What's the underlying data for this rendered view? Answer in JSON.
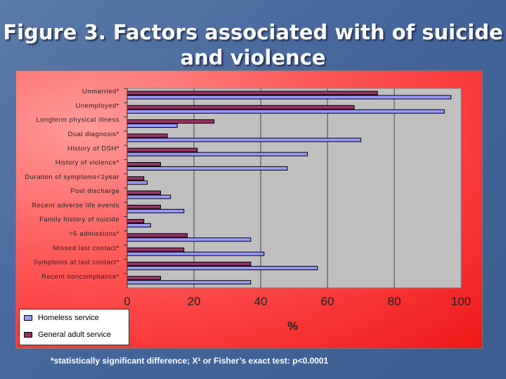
{
  "title": "Figure 3. Factors associated with of suicide and violence",
  "footnote": "*statistically significant difference; X² or Fisher’s exact test: p<0.0001",
  "colors": {
    "homeless": "#9999ff",
    "general": "#993366",
    "plot_bg": "#c0c0c0"
  },
  "chart_data": {
    "type": "bar",
    "orientation": "horizontal",
    "title": "Figure 3. Factors associated with of suicide and violence",
    "xlabel": "%",
    "ylabel": "",
    "xlim": [
      0,
      100
    ],
    "xticks": [
      0,
      20,
      40,
      60,
      80,
      100
    ],
    "grid": true,
    "legend_position": "bottom-left",
    "categories": [
      "Unmarried*",
      "Unemployed*",
      "Longterm physical illness",
      "Dual diagnosis*",
      "History of DSH*",
      "History of violence*",
      "Duration of symptoms<1year",
      "Post discharge",
      "Recent adverse life events",
      "Family history of suicide",
      ">5 admissions*",
      "Missed last contact*",
      "Symptoms at last contact*",
      "Recent noncompliance*"
    ],
    "series": [
      {
        "name": "General adult service",
        "values": [
          75,
          68,
          26,
          12,
          21,
          10,
          5,
          10,
          10,
          5,
          18,
          17,
          37,
          10
        ]
      },
      {
        "name": "Homeless service",
        "values": [
          97,
          95,
          15,
          70,
          54,
          48,
          6,
          13,
          17,
          7,
          37,
          41,
          57,
          37
        ]
      }
    ],
    "legend": [
      "Homeless service",
      "General adult service"
    ]
  }
}
